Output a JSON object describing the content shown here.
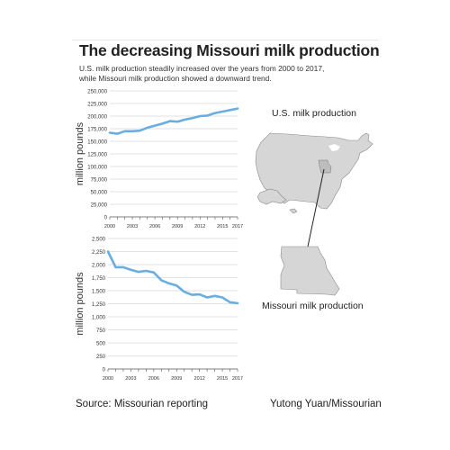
{
  "title": "The decreasing Missouri milk production",
  "subtitle_line1": "U.S. milk production steadily increased over the years from 2000 to 2017,",
  "subtitle_line2": "while Missouri milk production showed a downward trend.",
  "maps": {
    "us_label": "U.S. milk production",
    "mo_label": "Missouri milk production",
    "map_fill": "#d6d6d6",
    "state_highlight": "#bdbdbd"
  },
  "footer": {
    "source": "Source: Missourian reporting",
    "credit": "Yutong Yuan/Missourian"
  },
  "colors": {
    "line": "#6aaee0",
    "grid": "#d9d9d9",
    "axis": "#555555"
  },
  "chart_data": [
    {
      "type": "line",
      "ylabel": "million pounds",
      "ylim": [
        0,
        250000
      ],
      "yticks": [
        "0",
        "25,000",
        "50,000",
        "75,000",
        "100,000",
        "125,000",
        "150,000",
        "175,000",
        "200,000",
        "225,000",
        "250,000"
      ],
      "xlim": [
        2000,
        2017
      ],
      "xticks": [
        "2000",
        "2003",
        "2006",
        "2009",
        "2012",
        "2015",
        "2017"
      ],
      "grid": true,
      "x": [
        2000,
        2001,
        2002,
        2003,
        2004,
        2005,
        2006,
        2007,
        2008,
        2009,
        2010,
        2011,
        2012,
        2013,
        2014,
        2015,
        2016,
        2017
      ],
      "series": [
        {
          "values": [
            167000,
            165000,
            170000,
            170000,
            171000,
            177000,
            181000,
            185000,
            190000,
            189000,
            193000,
            196000,
            200000,
            201000,
            206000,
            209000,
            212000,
            215000
          ]
        }
      ]
    },
    {
      "type": "line",
      "ylabel": "million pounds",
      "ylim": [
        0,
        2500
      ],
      "yticks": [
        "0",
        "250",
        "500",
        "750",
        "1,000",
        "1,250",
        "1,500",
        "1,750",
        "2,000",
        "2,250",
        "2,500"
      ],
      "xlim": [
        2000,
        2017
      ],
      "xticks": [
        "2000",
        "2003",
        "2006",
        "2009",
        "2012",
        "2015",
        "2017"
      ],
      "grid": true,
      "x": [
        2000,
        2001,
        2002,
        2003,
        2004,
        2005,
        2006,
        2007,
        2008,
        2009,
        2010,
        2011,
        2012,
        2013,
        2014,
        2015,
        2016,
        2017
      ],
      "series": [
        {
          "values": [
            2250,
            1950,
            1950,
            1900,
            1860,
            1880,
            1850,
            1700,
            1640,
            1600,
            1480,
            1420,
            1430,
            1370,
            1400,
            1370,
            1280,
            1260
          ]
        }
      ]
    }
  ]
}
